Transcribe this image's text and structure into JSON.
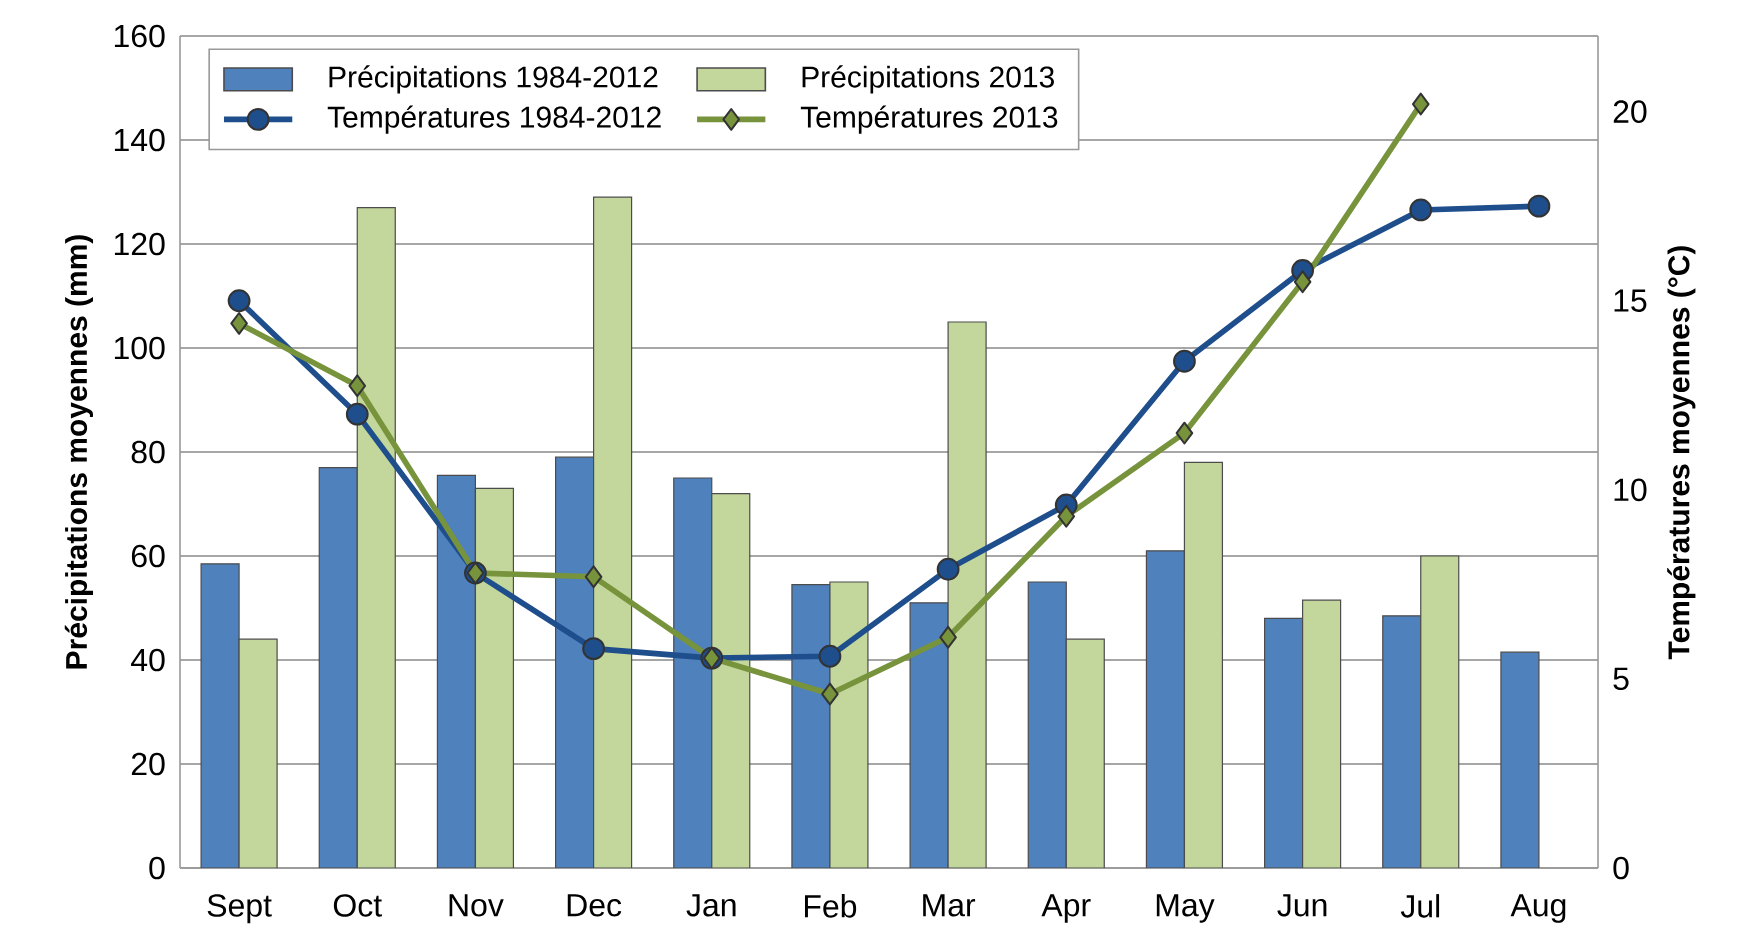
{
  "chart_data": {
    "type": "bar",
    "ylabel": "Précipitations moyennes (mm)",
    "y2label": "Températures moyennes (°C)",
    "categories": [
      "Sept",
      "Oct",
      "Nov",
      "Dec",
      "Jan",
      "Feb",
      "Mar",
      "Apr",
      "May",
      "Jun",
      "Jul",
      "Aug"
    ],
    "series": [
      {
        "name": "Précipitations 1984-2012",
        "color": "#4f81bd",
        "values": [
          58.5,
          77,
          75.5,
          79,
          75,
          54.5,
          51,
          55,
          61,
          48,
          48.5,
          41.5
        ]
      },
      {
        "name": "Précipitations 2013",
        "color": "#c3d69b",
        "values": [
          44,
          127,
          73,
          129,
          72,
          55,
          105,
          44,
          78,
          51.5,
          60,
          null
        ]
      },
      {
        "name": "Températures 1984-2012",
        "type": "line",
        "axis": "y2",
        "marker": "circle",
        "color": "#1f4e8c",
        "values": [
          15.0,
          12.0,
          7.8,
          5.8,
          5.55,
          5.6,
          7.9,
          9.6,
          13.4,
          15.8,
          17.4,
          17.5
        ]
      },
      {
        "name": "Températures 2013",
        "type": "line",
        "axis": "y2",
        "marker": "diamond",
        "color": "#77933c",
        "values": [
          14.4,
          12.75,
          7.8,
          7.7,
          5.55,
          4.6,
          6.1,
          9.3,
          11.5,
          15.5,
          20.2,
          null
        ]
      }
    ],
    "ylim": [
      0,
      160
    ],
    "yticks": [
      0,
      20,
      40,
      60,
      80,
      100,
      120,
      140,
      160
    ],
    "y2lim": [
      0,
      22
    ],
    "y2ticks": [
      0,
      5,
      10,
      15,
      20
    ],
    "grid": "y",
    "legend": "top left"
  }
}
